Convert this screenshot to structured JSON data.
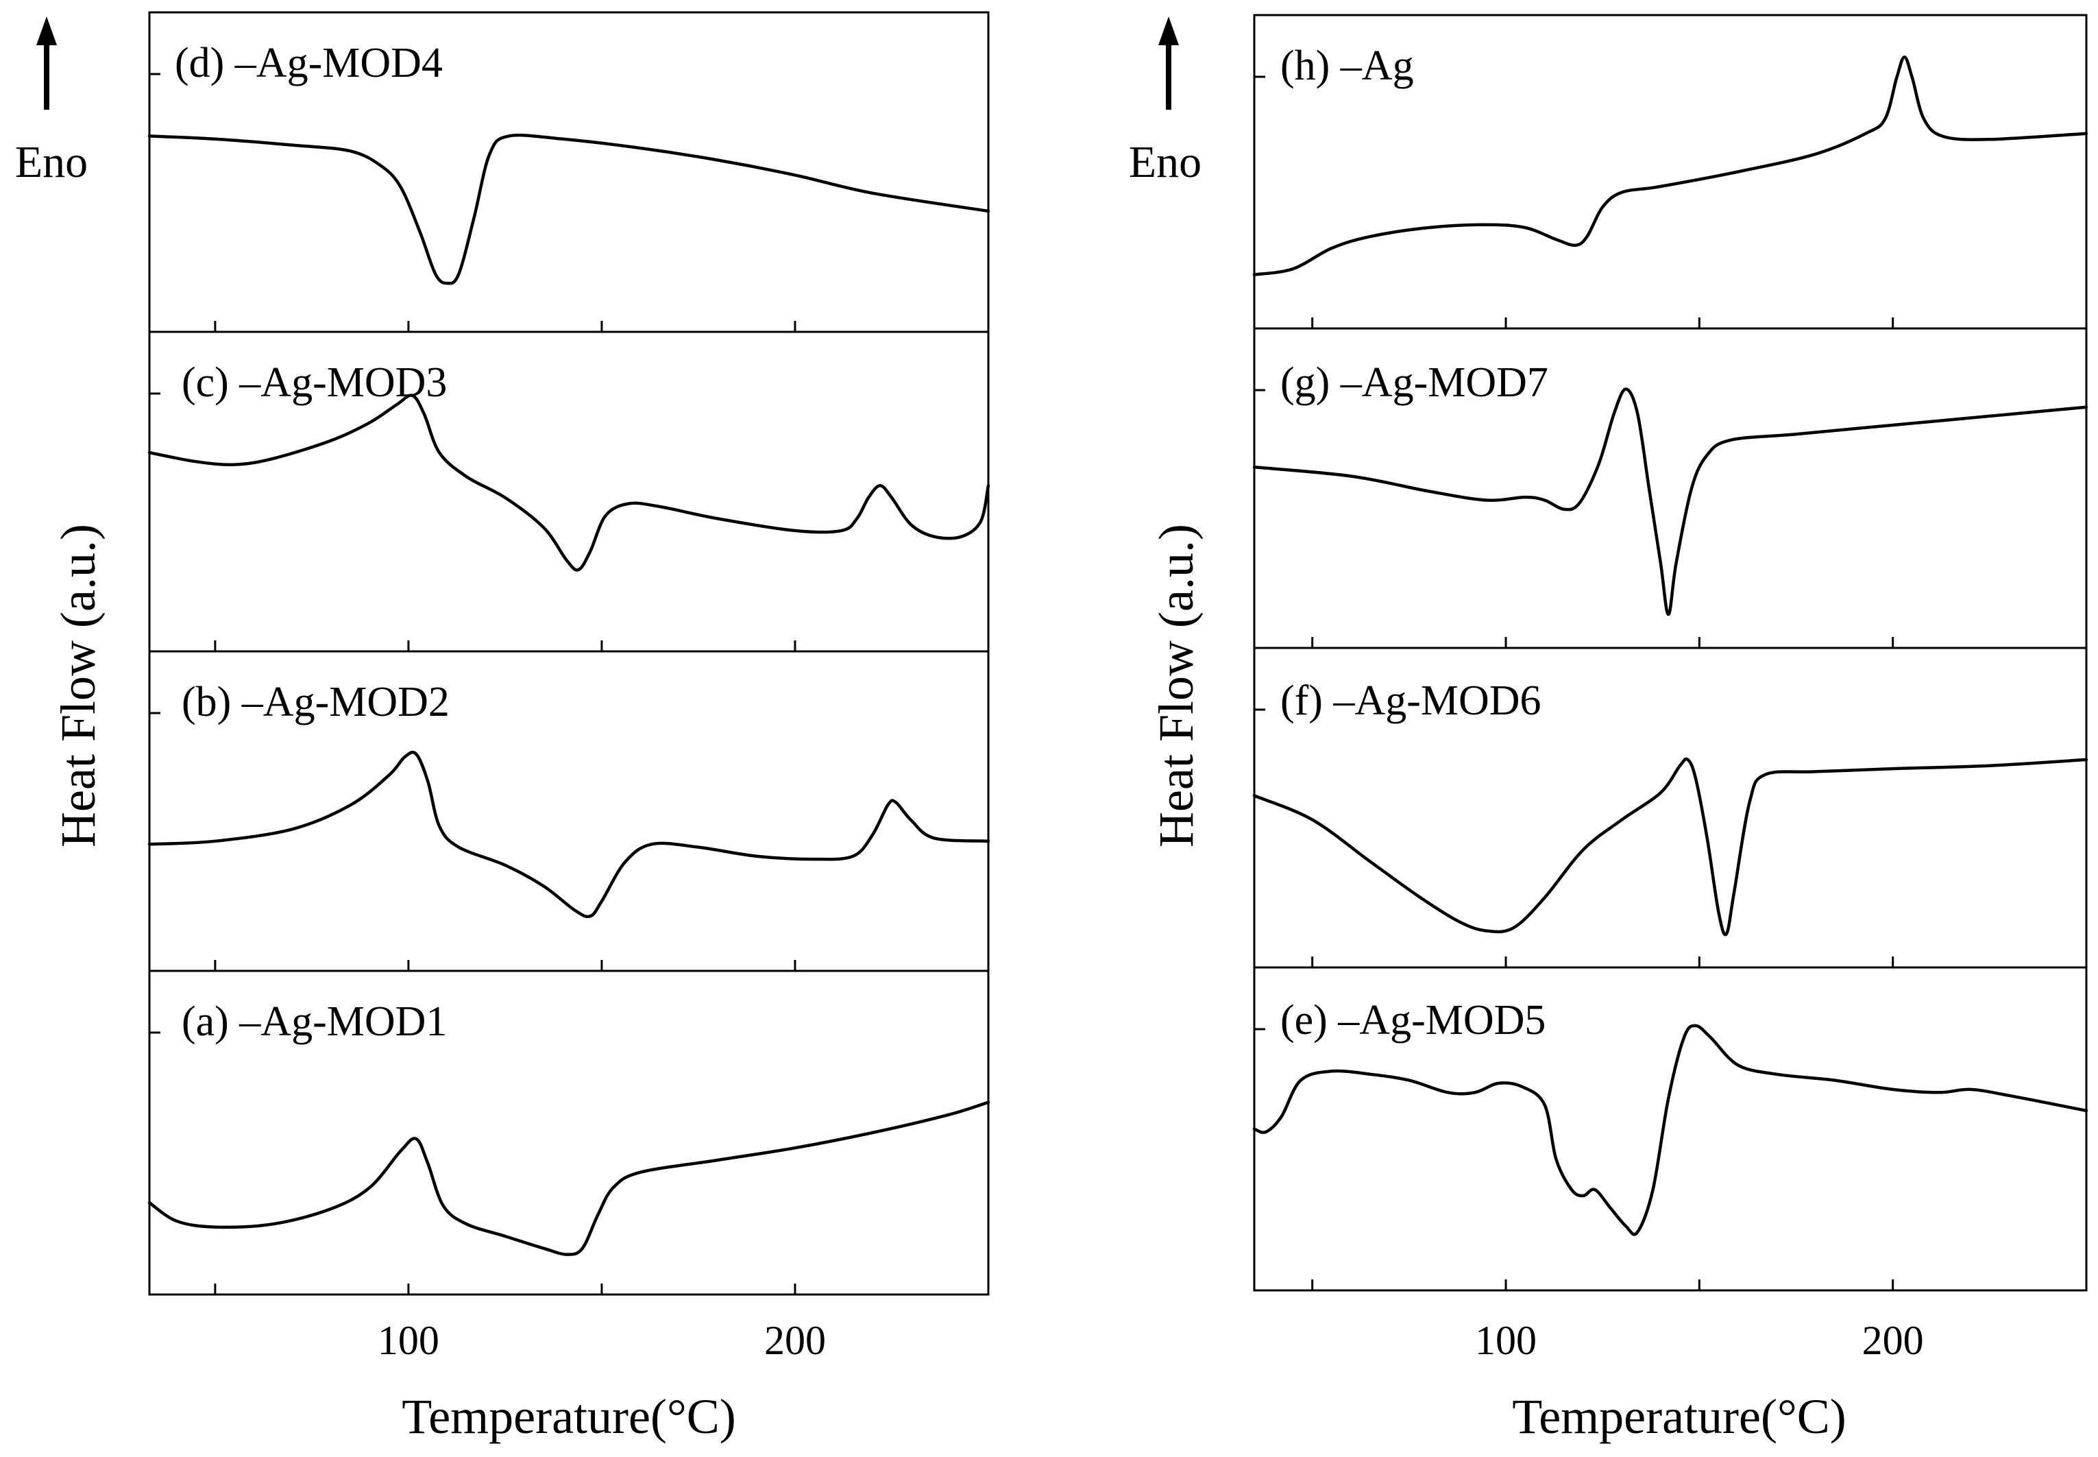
{
  "chart_data": [
    {
      "type": "line",
      "id": "left",
      "xlabel": "Temperature(°C)",
      "ylabel": "Heat Flow (a.u.)",
      "endo_label": "Eno",
      "xlim": [
        33,
        250
      ],
      "xticks": [
        {
          "value": 50,
          "label": ""
        },
        {
          "value": 100,
          "label": "100"
        },
        {
          "value": 150,
          "label": ""
        },
        {
          "value": 200,
          "label": "200"
        }
      ],
      "panels": [
        {
          "label": "(d) –Ag-MOD4",
          "points": [
            [
              33,
              0.62
            ],
            [
              50,
              0.61
            ],
            [
              70,
              0.59
            ],
            [
              85,
              0.57
            ],
            [
              93,
              0.52
            ],
            [
              98,
              0.45
            ],
            [
              103,
              0.3
            ],
            [
              107,
              0.16
            ],
            [
              110,
              0.13
            ],
            [
              113,
              0.16
            ],
            [
              117,
              0.35
            ],
            [
              121,
              0.56
            ],
            [
              126,
              0.62
            ],
            [
              140,
              0.61
            ],
            [
              160,
              0.58
            ],
            [
              180,
              0.54
            ],
            [
              200,
              0.49
            ],
            [
              220,
              0.43
            ],
            [
              250,
              0.37
            ]
          ]
        },
        {
          "label": "(c) –Ag-MOD3",
          "points": [
            [
              33,
              0.63
            ],
            [
              45,
              0.6
            ],
            [
              55,
              0.59
            ],
            [
              65,
              0.61
            ],
            [
              80,
              0.67
            ],
            [
              90,
              0.73
            ],
            [
              97,
              0.79
            ],
            [
              101,
              0.82
            ],
            [
              104,
              0.76
            ],
            [
              108,
              0.63
            ],
            [
              115,
              0.55
            ],
            [
              125,
              0.48
            ],
            [
              135,
              0.38
            ],
            [
              141,
              0.27
            ],
            [
              144,
              0.24
            ],
            [
              147,
              0.3
            ],
            [
              151,
              0.42
            ],
            [
              157,
              0.46
            ],
            [
              165,
              0.45
            ],
            [
              180,
              0.41
            ],
            [
              200,
              0.37
            ],
            [
              212,
              0.37
            ],
            [
              216,
              0.41
            ],
            [
              219,
              0.48
            ],
            [
              222,
              0.52
            ],
            [
              225,
              0.48
            ],
            [
              230,
              0.39
            ],
            [
              236,
              0.35
            ],
            [
              243,
              0.35
            ],
            [
              248,
              0.4
            ],
            [
              250,
              0.52
            ]
          ]
        },
        {
          "label": "(b) –Ag-MOD2",
          "points": [
            [
              33,
              0.39
            ],
            [
              50,
              0.4
            ],
            [
              70,
              0.44
            ],
            [
              85,
              0.52
            ],
            [
              95,
              0.62
            ],
            [
              99,
              0.68
            ],
            [
              102,
              0.69
            ],
            [
              105,
              0.6
            ],
            [
              108,
              0.45
            ],
            [
              113,
              0.38
            ],
            [
              125,
              0.32
            ],
            [
              135,
              0.25
            ],
            [
              143,
              0.17
            ],
            [
              147,
              0.15
            ],
            [
              150,
              0.2
            ],
            [
              156,
              0.33
            ],
            [
              163,
              0.39
            ],
            [
              175,
              0.38
            ],
            [
              190,
              0.35
            ],
            [
              205,
              0.34
            ],
            [
              215,
              0.35
            ],
            [
              220,
              0.42
            ],
            [
              224,
              0.52
            ],
            [
              226,
              0.53
            ],
            [
              230,
              0.47
            ],
            [
              236,
              0.41
            ],
            [
              250,
              0.4
            ]
          ]
        },
        {
          "label": "(a) –Ag-MOD1",
          "points": [
            [
              33,
              0.27
            ],
            [
              40,
              0.21
            ],
            [
              50,
              0.19
            ],
            [
              65,
              0.2
            ],
            [
              80,
              0.25
            ],
            [
              90,
              0.32
            ],
            [
              98,
              0.44
            ],
            [
              102,
              0.48
            ],
            [
              105,
              0.4
            ],
            [
              109,
              0.26
            ],
            [
              115,
              0.2
            ],
            [
              125,
              0.16
            ],
            [
              135,
              0.12
            ],
            [
              141,
              0.1
            ],
            [
              145,
              0.12
            ],
            [
              149,
              0.23
            ],
            [
              153,
              0.32
            ],
            [
              160,
              0.37
            ],
            [
              180,
              0.41
            ],
            [
              200,
              0.45
            ],
            [
              220,
              0.5
            ],
            [
              240,
              0.56
            ],
            [
              250,
              0.6
            ]
          ]
        }
      ]
    },
    {
      "type": "line",
      "id": "right",
      "xlabel": "Temperature(°C)",
      "ylabel": "Heat Flow (a.u.)",
      "endo_label": "Eno",
      "xlim": [
        35,
        250
      ],
      "xticks": [
        {
          "value": 50,
          "label": ""
        },
        {
          "value": 100,
          "label": "100"
        },
        {
          "value": 150,
          "label": ""
        },
        {
          "value": 200,
          "label": "200"
        }
      ],
      "panels": [
        {
          "label": "(h) –Ag",
          "points": [
            [
              35,
              0.15
            ],
            [
              45,
              0.17
            ],
            [
              55,
              0.24
            ],
            [
              65,
              0.28
            ],
            [
              80,
              0.31
            ],
            [
              95,
              0.32
            ],
            [
              105,
              0.31
            ],
            [
              113,
              0.27
            ],
            [
              118,
              0.25
            ],
            [
              121,
              0.28
            ],
            [
              125,
              0.38
            ],
            [
              130,
              0.43
            ],
            [
              140,
              0.45
            ],
            [
              160,
              0.5
            ],
            [
              180,
              0.56
            ],
            [
              193,
              0.63
            ],
            [
              198,
              0.68
            ],
            [
              201,
              0.82
            ],
            [
              203,
              0.89
            ],
            [
              205,
              0.82
            ],
            [
              208,
              0.68
            ],
            [
              213,
              0.62
            ],
            [
              225,
              0.61
            ],
            [
              250,
              0.63
            ]
          ]
        },
        {
          "label": "(g) –Ag-MOD7",
          "points": [
            [
              35,
              0.57
            ],
            [
              60,
              0.54
            ],
            [
              80,
              0.49
            ],
            [
              95,
              0.46
            ],
            [
              105,
              0.47
            ],
            [
              110,
              0.46
            ],
            [
              115,
              0.43
            ],
            [
              119,
              0.45
            ],
            [
              124,
              0.58
            ],
            [
              128,
              0.75
            ],
            [
              131,
              0.83
            ],
            [
              134,
              0.75
            ],
            [
              137,
              0.5
            ],
            [
              140,
              0.25
            ],
            [
              142,
              0.08
            ],
            [
              144,
              0.25
            ],
            [
              148,
              0.5
            ],
            [
              152,
              0.61
            ],
            [
              158,
              0.66
            ],
            [
              175,
              0.68
            ],
            [
              200,
              0.71
            ],
            [
              225,
              0.74
            ],
            [
              250,
              0.77
            ]
          ]
        },
        {
          "label": "(f) –Ag-MOD6",
          "points": [
            [
              35,
              0.54
            ],
            [
              50,
              0.46
            ],
            [
              65,
              0.32
            ],
            [
              78,
              0.2
            ],
            [
              88,
              0.12
            ],
            [
              95,
              0.09
            ],
            [
              102,
              0.1
            ],
            [
              110,
              0.2
            ],
            [
              120,
              0.36
            ],
            [
              130,
              0.46
            ],
            [
              140,
              0.55
            ],
            [
              145,
              0.64
            ],
            [
              147,
              0.66
            ],
            [
              149,
              0.6
            ],
            [
              152,
              0.4
            ],
            [
              155,
              0.15
            ],
            [
              157,
              0.08
            ],
            [
              159,
              0.22
            ],
            [
              163,
              0.52
            ],
            [
              167,
              0.61
            ],
            [
              180,
              0.62
            ],
            [
              200,
              0.63
            ],
            [
              225,
              0.64
            ],
            [
              250,
              0.66
            ]
          ]
        },
        {
          "label": "(e) –Ag-MOD5",
          "points": [
            [
              35,
              0.5
            ],
            [
              38,
              0.49
            ],
            [
              42,
              0.54
            ],
            [
              47,
              0.66
            ],
            [
              55,
              0.69
            ],
            [
              65,
              0.68
            ],
            [
              75,
              0.66
            ],
            [
              85,
              0.62
            ],
            [
              92,
              0.62
            ],
            [
              98,
              0.65
            ],
            [
              104,
              0.64
            ],
            [
              110,
              0.58
            ],
            [
              113,
              0.4
            ],
            [
              117,
              0.3
            ],
            [
              120,
              0.28
            ],
            [
              123,
              0.3
            ],
            [
              127,
              0.24
            ],
            [
              131,
              0.18
            ],
            [
              134,
              0.16
            ],
            [
              138,
              0.3
            ],
            [
              142,
              0.6
            ],
            [
              146,
              0.8
            ],
            [
              149,
              0.84
            ],
            [
              153,
              0.8
            ],
            [
              160,
              0.71
            ],
            [
              170,
              0.68
            ],
            [
              185,
              0.66
            ],
            [
              200,
              0.63
            ],
            [
              212,
              0.62
            ],
            [
              220,
              0.63
            ],
            [
              230,
              0.61
            ],
            [
              250,
              0.56
            ]
          ]
        }
      ]
    }
  ]
}
